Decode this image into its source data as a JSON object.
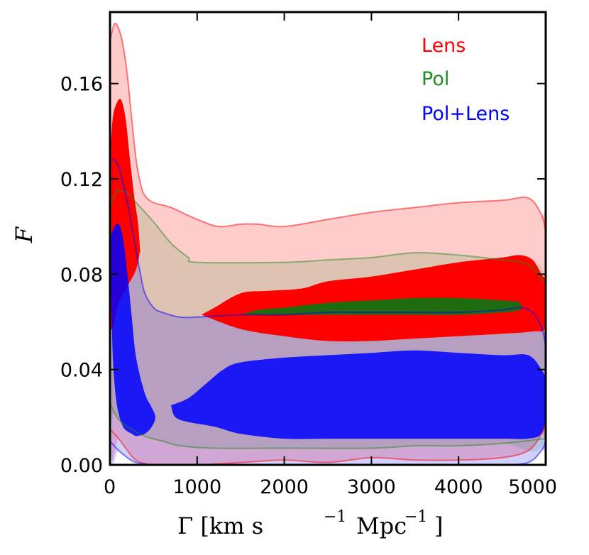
{
  "chart_data": {
    "type": "area",
    "title": "",
    "xlabel": "Γ [km s",
    "xlabel_parts": {
      "s_exp": "−1",
      "mpc": "Mpc",
      "mpc_exp": "−1",
      "close": "]"
    },
    "ylabel": "F",
    "xlim": [
      0,
      5000
    ],
    "ylim": [
      0,
      0.19
    ],
    "xticks": [
      0,
      1000,
      2000,
      3000,
      4000,
      5000
    ],
    "xtick_labels": [
      "0",
      "1000",
      "2000",
      "3000",
      "4000",
      "5000"
    ],
    "yticks": [
      0.0,
      0.04,
      0.08,
      0.12,
      0.16
    ],
    "ytick_labels": [
      "0.00",
      "0.04",
      "0.08",
      "0.12",
      "0.16"
    ],
    "grid": false,
    "legend_position": "top-right",
    "series": [
      {
        "name": "Lens",
        "color": "#ff0000",
        "outer_upper": [
          [
            0,
            0.178
          ],
          [
            50,
            0.185
          ],
          [
            100,
            0.183
          ],
          [
            150,
            0.176
          ],
          [
            200,
            0.163
          ],
          [
            250,
            0.145
          ],
          [
            300,
            0.128
          ],
          [
            350,
            0.118
          ],
          [
            400,
            0.113
          ],
          [
            500,
            0.11
          ],
          [
            700,
            0.108
          ],
          [
            1000,
            0.103
          ],
          [
            1250,
            0.1
          ],
          [
            1500,
            0.101
          ],
          [
            1700,
            0.101
          ],
          [
            2000,
            0.1
          ],
          [
            2500,
            0.103
          ],
          [
            3000,
            0.106
          ],
          [
            3500,
            0.108
          ],
          [
            4000,
            0.11
          ],
          [
            4500,
            0.111
          ],
          [
            4800,
            0.112
          ],
          [
            4950,
            0.105
          ],
          [
            5000,
            0.098
          ]
        ],
        "outer_lower": [
          [
            0,
            0.015
          ],
          [
            100,
            0.011
          ],
          [
            200,
            0.006
          ],
          [
            300,
            0.002
          ],
          [
            500,
            0.0
          ],
          [
            1000,
            0.0
          ],
          [
            1500,
            0.001
          ],
          [
            2000,
            0.002
          ],
          [
            2500,
            0.001
          ],
          [
            3000,
            0.003
          ],
          [
            3500,
            0.002
          ],
          [
            4000,
            0.002
          ],
          [
            4500,
            0.003
          ],
          [
            4800,
            0.006
          ],
          [
            4950,
            0.013
          ],
          [
            5000,
            0.018
          ]
        ],
        "inner_blobs": [
          {
            "upper": [
              [
                0,
                0.127
              ],
              [
                30,
                0.145
              ],
              [
                80,
                0.152
              ],
              [
                130,
                0.153
              ],
              [
                180,
                0.145
              ],
              [
                230,
                0.128
              ],
              [
                280,
                0.112
              ],
              [
                320,
                0.102
              ],
              [
                345,
                0.09
              ]
            ],
            "lower": [
              [
                0,
                0.06
              ],
              [
                100,
                0.068
              ],
              [
                200,
                0.075
              ],
              [
                300,
                0.082
              ],
              [
                345,
                0.09
              ]
            ]
          },
          {
            "upper": [
              [
                1050,
                0.063
              ],
              [
                1200,
                0.066
              ],
              [
                1500,
                0.072
              ],
              [
                1800,
                0.073
              ],
              [
                2200,
                0.074
              ],
              [
                2500,
                0.077
              ],
              [
                3000,
                0.079
              ],
              [
                3500,
                0.082
              ],
              [
                4000,
                0.085
              ],
              [
                4500,
                0.087
              ],
              [
                4700,
                0.088
              ],
              [
                4850,
                0.086
              ],
              [
                4950,
                0.08
              ],
              [
                5000,
                0.076
              ]
            ],
            "lower": [
              [
                1050,
                0.063
              ],
              [
                1500,
                0.057
              ],
              [
                2000,
                0.054
              ],
              [
                2500,
                0.052
              ],
              [
                3000,
                0.052
              ],
              [
                3500,
                0.053
              ],
              [
                4000,
                0.054
              ],
              [
                4500,
                0.055
              ],
              [
                4850,
                0.056
              ],
              [
                5000,
                0.058
              ]
            ]
          }
        ]
      },
      {
        "name": "Pol",
        "color": "#228b22",
        "outer_upper": [
          [
            0,
            0.108
          ],
          [
            50,
            0.113
          ],
          [
            100,
            0.115
          ],
          [
            200,
            0.114
          ],
          [
            300,
            0.11
          ],
          [
            500,
            0.102
          ],
          [
            700,
            0.093
          ],
          [
            900,
            0.087
          ],
          [
            1000,
            0.085
          ],
          [
            2000,
            0.085
          ],
          [
            2500,
            0.086
          ],
          [
            3000,
            0.087
          ],
          [
            3500,
            0.089
          ],
          [
            4000,
            0.088
          ],
          [
            4500,
            0.086
          ],
          [
            4800,
            0.084
          ],
          [
            5000,
            0.076
          ]
        ],
        "outer_lower": [
          [
            0,
            0.026
          ],
          [
            50,
            0.022
          ],
          [
            100,
            0.019
          ],
          [
            200,
            0.016
          ],
          [
            400,
            0.012
          ],
          [
            600,
            0.01
          ],
          [
            800,
            0.008
          ],
          [
            1200,
            0.007
          ],
          [
            2000,
            0.007
          ],
          [
            3000,
            0.007
          ],
          [
            3500,
            0.008
          ],
          [
            4000,
            0.008
          ],
          [
            4500,
            0.009
          ],
          [
            5000,
            0.011
          ]
        ],
        "inner_blobs": [
          {
            "upper": [
              [
                1500,
                0.063
              ],
              [
                1700,
                0.065
              ],
              [
                2000,
                0.066
              ],
              [
                2500,
                0.068
              ],
              [
                3000,
                0.069
              ],
              [
                3500,
                0.07
              ],
              [
                4000,
                0.07
              ],
              [
                4500,
                0.069
              ],
              [
                4700,
                0.068
              ]
            ],
            "lower": [
              [
                1500,
                0.063
              ],
              [
                2000,
                0.063
              ],
              [
                2500,
                0.063
              ],
              [
                3000,
                0.063
              ],
              [
                3500,
                0.063
              ],
              [
                4000,
                0.063
              ],
              [
                4500,
                0.064
              ],
              [
                4700,
                0.065
              ]
            ]
          }
        ]
      },
      {
        "name": "Pol+Lens",
        "color": "#0000ff",
        "outer_upper": [
          [
            0,
            0.128
          ],
          [
            50,
            0.128
          ],
          [
            100,
            0.125
          ],
          [
            150,
            0.118
          ],
          [
            200,
            0.11
          ],
          [
            250,
            0.1
          ],
          [
            300,
            0.09
          ],
          [
            350,
            0.08
          ],
          [
            400,
            0.072
          ],
          [
            500,
            0.066
          ],
          [
            600,
            0.064
          ],
          [
            800,
            0.062
          ],
          [
            1000,
            0.062
          ],
          [
            1500,
            0.063
          ],
          [
            2000,
            0.063
          ],
          [
            2500,
            0.064
          ],
          [
            3000,
            0.064
          ],
          [
            3500,
            0.064
          ],
          [
            4000,
            0.064
          ],
          [
            4500,
            0.065
          ],
          [
            4700,
            0.066
          ],
          [
            4850,
            0.064
          ],
          [
            4950,
            0.058
          ],
          [
            5000,
            0.05
          ]
        ],
        "outer_lower": [
          [
            0,
            0.01
          ],
          [
            100,
            0.006
          ],
          [
            200,
            0.003
          ],
          [
            300,
            0.001
          ],
          [
            500,
            0.0
          ],
          [
            1000,
            0.0
          ],
          [
            2000,
            0.0
          ],
          [
            3000,
            0.0
          ],
          [
            4000,
            0.0
          ],
          [
            4500,
            0.0
          ],
          [
            4800,
            0.001
          ],
          [
            4950,
            0.006
          ],
          [
            5000,
            0.01
          ]
        ],
        "inner_blobs": [
          {
            "upper": [
              [
                0,
                0.095
              ],
              [
                50,
                0.1
              ],
              [
                100,
                0.101
              ],
              [
                150,
                0.095
              ],
              [
                200,
                0.08
              ],
              [
                250,
                0.062
              ],
              [
                300,
                0.045
              ],
              [
                400,
                0.03
              ],
              [
                480,
                0.024
              ],
              [
                520,
                0.02
              ],
              [
                480,
                0.016
              ],
              [
                400,
                0.013
              ],
              [
                300,
                0.012
              ]
            ],
            "lower": [
              [
                0,
                0.095
              ],
              [
                20,
                0.06
              ],
              [
                40,
                0.04
              ],
              [
                80,
                0.025
              ],
              [
                150,
                0.016
              ],
              [
                250,
                0.013
              ],
              [
                300,
                0.012
              ]
            ]
          },
          {
            "upper": [
              [
                700,
                0.025
              ],
              [
                900,
                0.028
              ],
              [
                1100,
                0.034
              ],
              [
                1300,
                0.04
              ],
              [
                1500,
                0.043
              ],
              [
                2000,
                0.045
              ],
              [
                2500,
                0.046
              ],
              [
                3000,
                0.047
              ],
              [
                3500,
                0.048
              ],
              [
                4000,
                0.047
              ],
              [
                4500,
                0.046
              ],
              [
                4800,
                0.046
              ],
              [
                4950,
                0.04
              ],
              [
                5000,
                0.035
              ]
            ],
            "lower": [
              [
                700,
                0.025
              ],
              [
                750,
                0.02
              ],
              [
                900,
                0.018
              ],
              [
                1200,
                0.016
              ],
              [
                1500,
                0.013
              ],
              [
                2000,
                0.011
              ],
              [
                2500,
                0.011
              ],
              [
                3000,
                0.011
              ],
              [
                3500,
                0.011
              ],
              [
                4000,
                0.011
              ],
              [
                4500,
                0.011
              ],
              [
                4800,
                0.011
              ],
              [
                4950,
                0.013
              ],
              [
                5000,
                0.02
              ]
            ]
          }
        ]
      }
    ]
  }
}
